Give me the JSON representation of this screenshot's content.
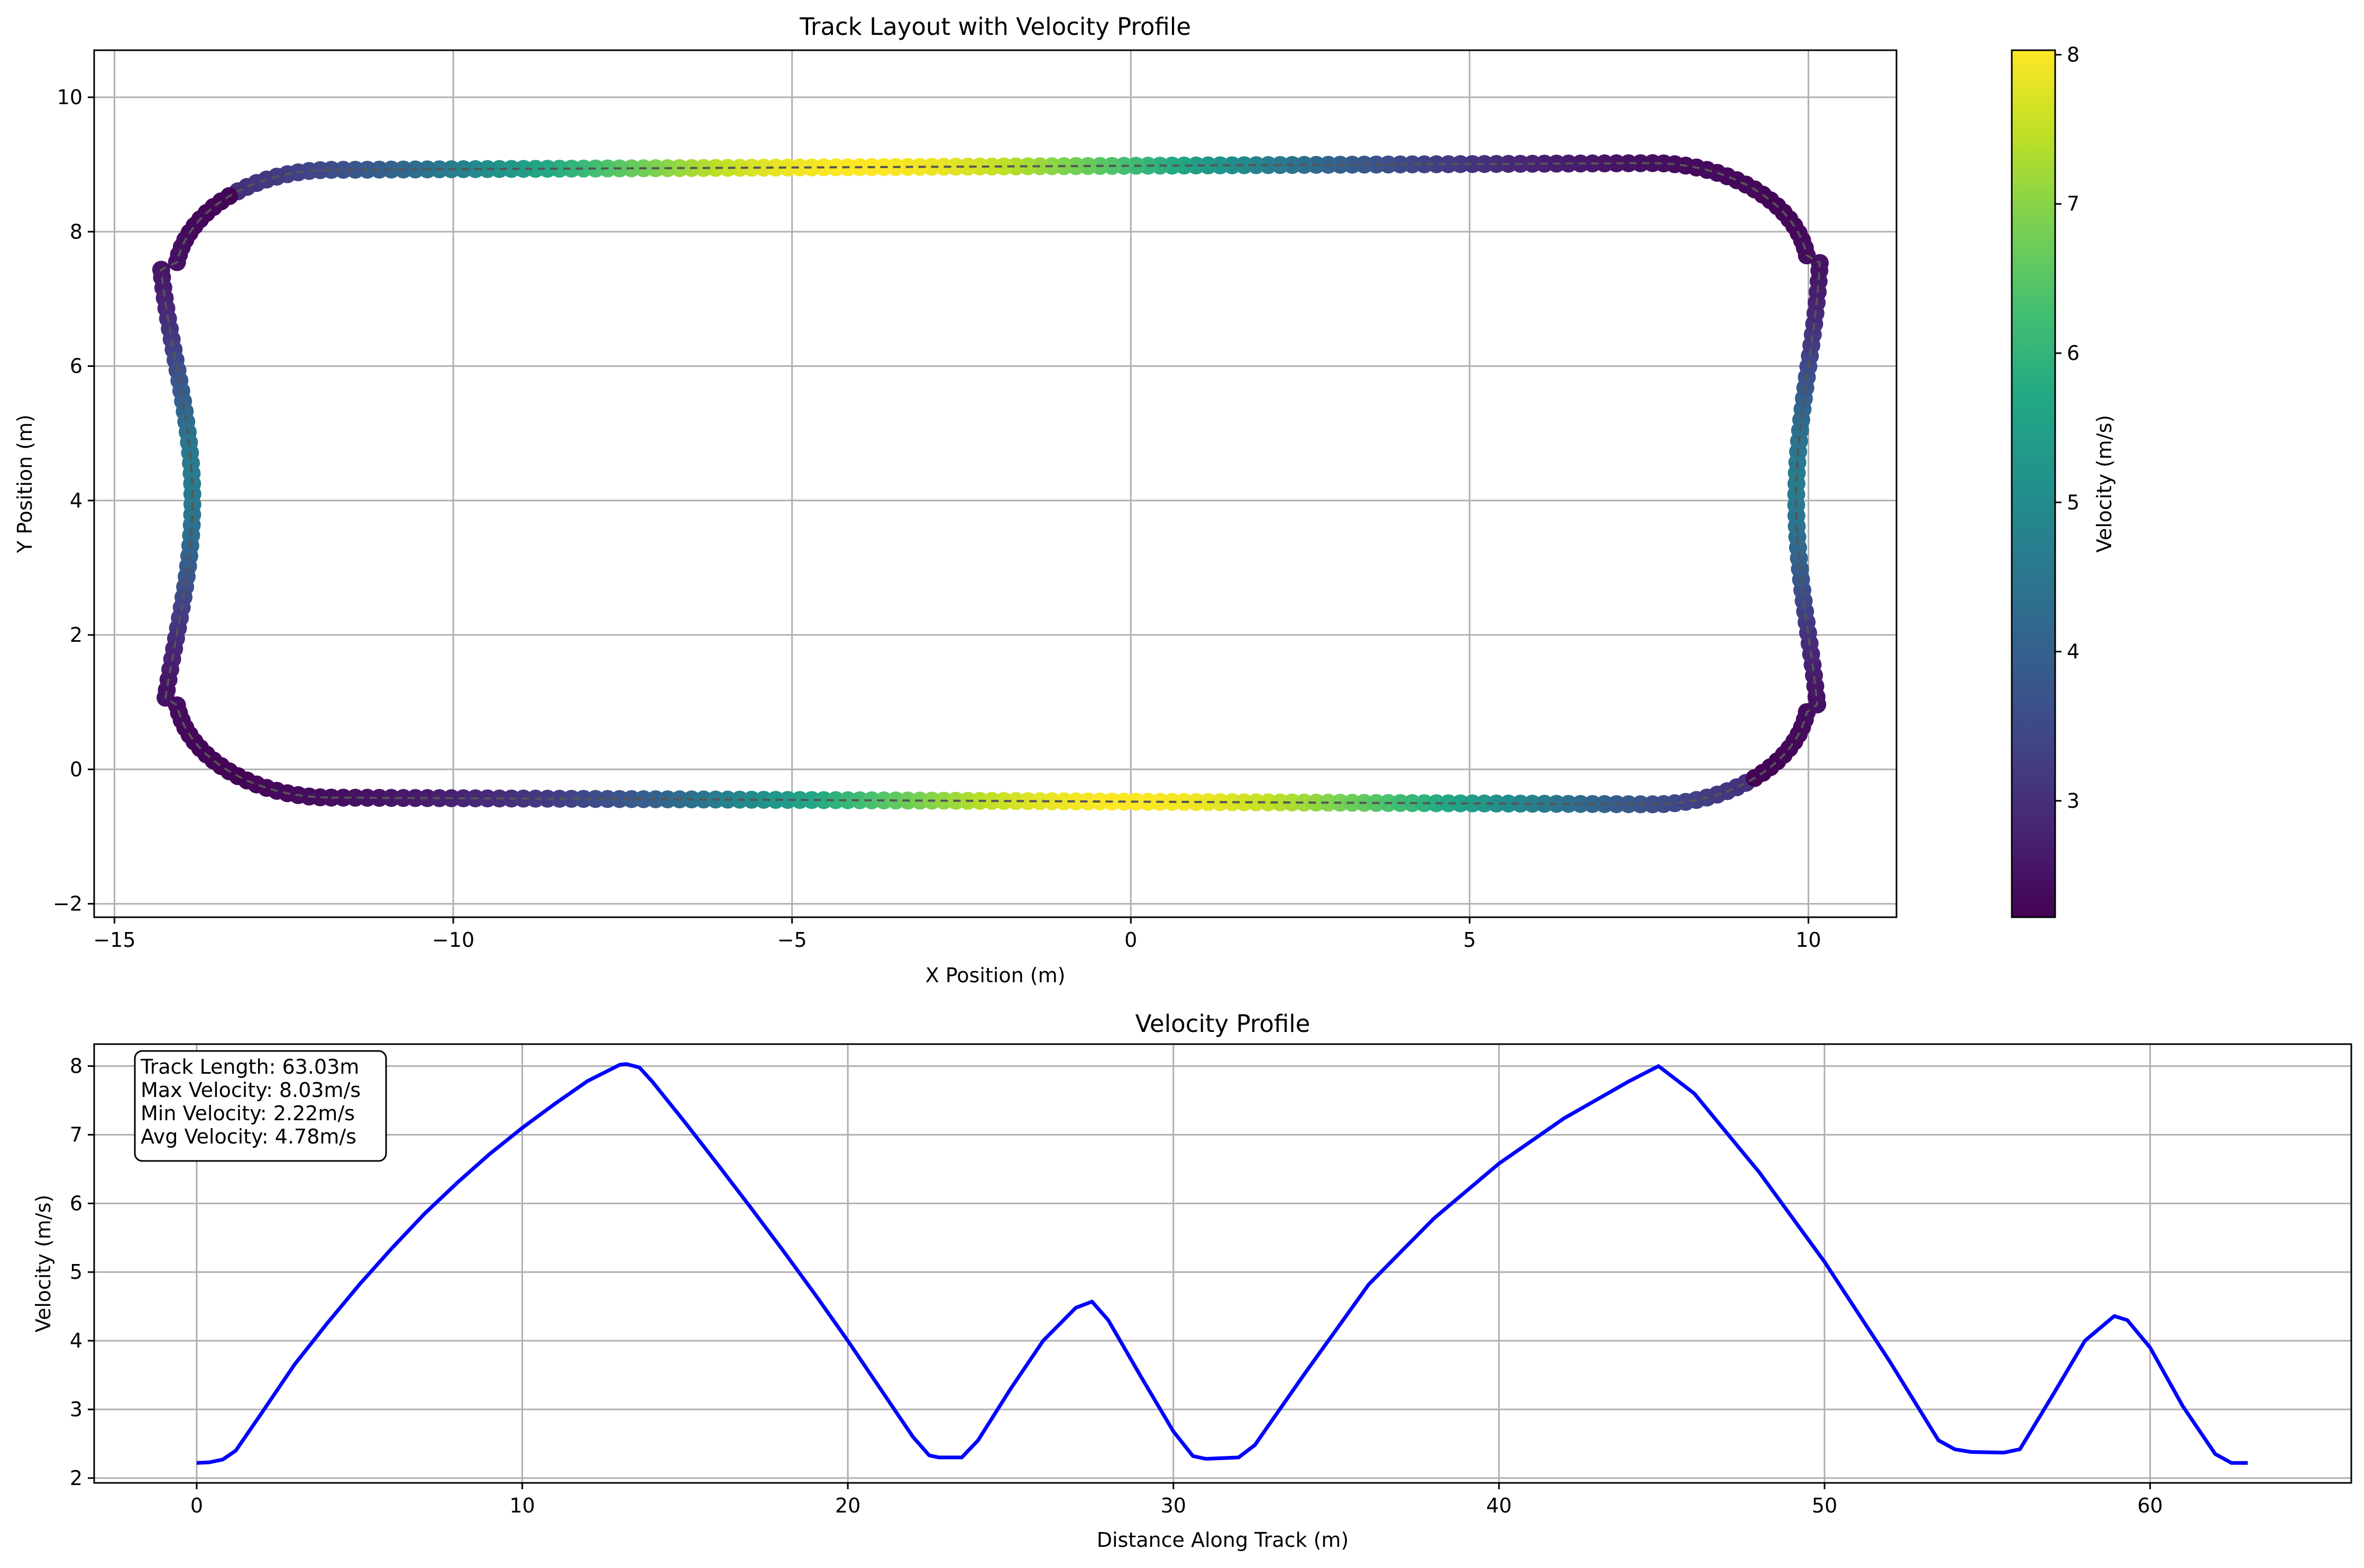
{
  "chart_data": [
    {
      "type": "scatter",
      "title": "Track Layout with Velocity Profile",
      "xlabel": "X Position (m)",
      "ylabel": "Y Position (m)",
      "xlim": [
        -15.3,
        11.3
      ],
      "ylim": [
        -2.2,
        10.7
      ],
      "xticks": [
        -15,
        -10,
        -5,
        0,
        5,
        10
      ],
      "xtick_labels": [
        "−15",
        "−10",
        "−5",
        "0",
        "5",
        "10"
      ],
      "yticks": [
        -2,
        0,
        2,
        4,
        6,
        8,
        10
      ],
      "ytick_labels": [
        "−2",
        "0",
        "2",
        "4",
        "6",
        "8",
        "10"
      ],
      "grid": true,
      "colormap": "viridis",
      "colorbar": {
        "label": "Velocity (m/s)",
        "range": [
          2.22,
          8.03
        ],
        "ticks": [
          3,
          4,
          5,
          6,
          7,
          8
        ],
        "tick_labels": [
          "3",
          "4",
          "5",
          "6",
          "7",
          "8"
        ]
      },
      "track_outline": {
        "x_min": -14.1,
        "x_max": 10.0,
        "y_min_left": -0.42,
        "y_min_right": -0.52,
        "y_max_left": 8.92,
        "y_max_right": 9.02,
        "top_edge_dip": {
          "x": -4.0,
          "y": 8.82
        },
        "bottom_edge_dip": {
          "x": 0.0,
          "y": -0.5
        }
      },
      "centerline_style": {
        "color": "#555555",
        "dash": "dashed"
      }
    },
    {
      "type": "line",
      "title": "Velocity Profile",
      "xlabel": "Distance Along Track (m)",
      "ylabel": "Velocity (m/s)",
      "xlim": [
        -3.15,
        66.18
      ],
      "ylim": [
        1.93,
        8.32
      ],
      "xticks": [
        0,
        10,
        20,
        30,
        40,
        50,
        60
      ],
      "xtick_labels": [
        "0",
        "10",
        "20",
        "30",
        "40",
        "50",
        "60"
      ],
      "yticks": [
        2,
        3,
        4,
        5,
        6,
        7,
        8
      ],
      "ytick_labels": [
        "2",
        "3",
        "4",
        "5",
        "6",
        "7",
        "8"
      ],
      "grid": true,
      "series": [
        {
          "color": "#0000ff",
          "x": [
            0,
            0.4,
            0.8,
            1.2,
            2,
            3,
            4,
            5,
            6,
            7,
            8,
            9,
            10,
            11,
            12,
            13,
            13.2,
            13.6,
            14,
            15,
            16,
            17,
            18,
            19,
            20,
            21,
            22,
            22.5,
            22.8,
            23.5,
            24,
            25,
            26,
            27,
            27.5,
            28,
            29,
            30,
            30.6,
            31,
            32,
            32.5,
            34,
            36,
            38,
            40,
            42,
            44,
            44.9,
            46,
            48,
            50,
            52,
            53.5,
            54,
            54.5,
            55.5,
            56,
            57,
            58,
            58.9,
            59.3,
            60,
            61,
            62,
            62.5,
            63
          ],
          "y": [
            2.22,
            2.23,
            2.27,
            2.4,
            2.95,
            3.65,
            4.25,
            4.82,
            5.35,
            5.85,
            6.3,
            6.72,
            7.1,
            7.45,
            7.78,
            8.02,
            8.03,
            7.98,
            7.77,
            7.18,
            6.57,
            5.95,
            5.32,
            4.67,
            4.0,
            3.3,
            2.6,
            2.33,
            2.3,
            2.3,
            2.55,
            3.3,
            4.0,
            4.48,
            4.57,
            4.3,
            3.48,
            2.68,
            2.32,
            2.28,
            2.3,
            2.48,
            3.5,
            4.82,
            5.78,
            6.58,
            7.24,
            7.78,
            8.0,
            7.6,
            6.45,
            5.15,
            3.7,
            2.55,
            2.42,
            2.38,
            2.37,
            2.42,
            3.2,
            4.0,
            4.36,
            4.3,
            3.9,
            3.05,
            2.35,
            2.22,
            2.22
          ]
        }
      ],
      "annotation_lines": [
        "Track Length: 63.03m",
        "Max Velocity: 8.03m/s",
        "Min Velocity: 2.22m/s",
        "Avg Velocity: 4.78m/s"
      ]
    }
  ]
}
